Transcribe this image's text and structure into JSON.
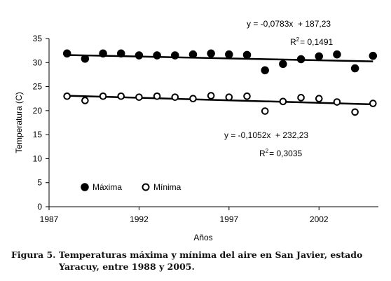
{
  "chart_data": {
    "type": "scatter",
    "xlabel": "Años",
    "ylabel": "Temperatura (C)",
    "xlim": [
      1987,
      2005.3
    ],
    "ylim": [
      0,
      35
    ],
    "x_ticks": [
      1987,
      1992,
      1997,
      2002
    ],
    "y_ticks": [
      0,
      5,
      10,
      15,
      20,
      25,
      30,
      35
    ],
    "grid": false,
    "legend_position": "lower-left",
    "series": [
      {
        "name": "Máxima",
        "marker": "filled-circle",
        "color": "#000000",
        "x": [
          1988,
          1989,
          1990,
          1991,
          1992,
          1993,
          1994,
          1995,
          1996,
          1997,
          1998,
          1999,
          2000,
          2001,
          2002,
          2003,
          2004,
          2005
        ],
        "y": [
          31.9,
          30.8,
          31.9,
          31.9,
          31.5,
          31.5,
          31.5,
          31.7,
          31.9,
          31.7,
          31.6,
          28.4,
          29.7,
          30.7,
          31.3,
          31.7,
          28.8,
          31.4
        ],
        "trend": {
          "slope": -0.0783,
          "intercept": 187.23,
          "equation": "y = -0,0783x  + 187,23",
          "r2_label": "R",
          "r2_sup": "2",
          "r2_value": "= 0,1491"
        }
      },
      {
        "name": "Mínima",
        "marker": "open-circle",
        "color": "#000000",
        "x": [
          1988,
          1989,
          1990,
          1991,
          1992,
          1993,
          1994,
          1995,
          1996,
          1997,
          1998,
          1999,
          2000,
          2001,
          2002,
          2003,
          2004,
          2005
        ],
        "y": [
          23.0,
          22.1,
          23.0,
          23.0,
          22.8,
          23.0,
          22.8,
          22.5,
          23.1,
          22.8,
          23.0,
          19.9,
          21.9,
          22.7,
          22.5,
          21.8,
          19.7,
          21.5
        ],
        "trend": {
          "slope": -0.1052,
          "intercept": 232.23,
          "equation": "y = -0,1052x  + 232,23",
          "r2_label": "R",
          "r2_sup": "2",
          "r2_value": "= 0,3035"
        }
      }
    ]
  },
  "caption": {
    "line1": "Figura 5. Temperaturas máxima y mínima del aire en San Javier, estado",
    "line2": "Yaracuy, entre 1988 y 2005."
  }
}
